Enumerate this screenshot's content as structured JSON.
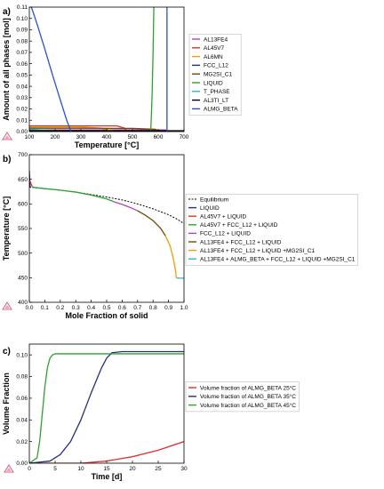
{
  "chart_data": [
    {
      "type": "line",
      "panel_label": "a)",
      "xlabel": "Temperature [°C]",
      "ylabel": "Amount of all phases [mol]",
      "xlim": [
        100,
        700
      ],
      "ylim": [
        0,
        0.11
      ],
      "xticks": [
        100,
        200,
        300,
        400,
        500,
        600,
        700
      ],
      "yticks": [
        0,
        0.01,
        0.02,
        0.03,
        0.04,
        0.05,
        0.06,
        0.07,
        0.08,
        0.09,
        0.1,
        0.11
      ],
      "ytick_labels": [
        "0.00",
        "0.01",
        "0.02",
        "0.03",
        "0.04",
        "0.05",
        "0.06",
        "0.07",
        "0.08",
        "0.09",
        "0.10",
        "0.11"
      ],
      "grid": false,
      "legend_position": "right",
      "series": [
        {
          "name": "AL13FE4",
          "color": "#b040c0",
          "x": [
            100,
            200,
            300,
            400,
            500,
            560,
            600,
            630,
            640
          ],
          "y": [
            0.0015,
            0.0015,
            0.0015,
            0.0015,
            0.0015,
            0.0015,
            0.0015,
            0.0015,
            0
          ]
        },
        {
          "name": "AL45V7",
          "color": "#e03030",
          "x": [
            100,
            300,
            440,
            470,
            480
          ],
          "y": [
            0.005,
            0.005,
            0.005,
            0.003,
            0
          ]
        },
        {
          "name": "AL6MN",
          "color": "#f0a000",
          "x": [
            100,
            200,
            300,
            380,
            420,
            440
          ],
          "y": [
            0.004,
            0.0042,
            0.0041,
            0.003,
            0.001,
            0
          ]
        },
        {
          "name": "FCC_L12",
          "color": "#203080",
          "x": [
            100,
            620,
            634,
            636
          ],
          "y": [
            0.0005,
            0.0005,
            0.0005,
            0
          ]
        },
        {
          "name": "MG2SI_C1",
          "color": "#6b4a10",
          "x": [
            100,
            300,
            500,
            590,
            600
          ],
          "y": [
            0.003,
            0.003,
            0.0028,
            0.002,
            0
          ]
        },
        {
          "name": "LIQUID",
          "color": "#30a030",
          "x": [
            571,
            576,
            580,
            583
          ],
          "y": [
            0,
            0.03,
            0.07,
            0.11
          ]
        },
        {
          "name": "T_PHASE",
          "color": "#30b0d0",
          "x": [
            100,
            150,
            200,
            230
          ],
          "y": [
            0.002,
            0.0015,
            0.0008,
            0
          ]
        },
        {
          "name": "AL3TI_LT",
          "color": "#000000",
          "x": [
            100,
            300,
            500,
            620,
            660,
            700
          ],
          "y": [
            0.0008,
            0.0008,
            0.0008,
            0.0008,
            0.0008,
            0.0008
          ]
        },
        {
          "name": "ALMG_BETA",
          "color": "#2a50d8",
          "x": [
            108,
            130,
            160,
            190,
            220,
            245,
            262
          ],
          "y": [
            0.11,
            0.095,
            0.073,
            0.05,
            0.028,
            0.01,
            0
          ]
        },
        {
          "name": "",
          "color": "#2a50d8",
          "x": [
            634,
            634
          ],
          "y": [
            0,
            0.11
          ]
        }
      ]
    },
    {
      "type": "line",
      "panel_label": "b)",
      "xlabel": "Mole Fraction of solid",
      "ylabel": "Temperature [°C]",
      "xlim": [
        0,
        1.0
      ],
      "ylim": [
        400,
        700
      ],
      "xticks": [
        0,
        0.1,
        0.2,
        0.3,
        0.4,
        0.5,
        0.6,
        0.7,
        0.8,
        0.9,
        1.0
      ],
      "xtick_labels": [
        "0.0",
        "0.1",
        "0.2",
        "0.3",
        "0.4",
        "0.5",
        "0.6",
        "0.7",
        "0.8",
        "0.9",
        "1.0"
      ],
      "yticks": [
        400,
        450,
        500,
        550,
        600,
        650,
        700
      ],
      "grid": false,
      "legend_position": "right",
      "series": [
        {
          "name": "Equilibrium",
          "color": "#000000",
          "dashed": true,
          "x": [
            0,
            0.1,
            0.2,
            0.3,
            0.4,
            0.5,
            0.6,
            0.7,
            0.8,
            0.9,
            0.95,
            1.0
          ],
          "y": [
            634,
            631,
            628,
            624,
            619,
            614,
            608,
            600,
            590,
            578,
            570,
            560
          ]
        },
        {
          "name": "LIQUID",
          "color": "#203080",
          "x": [
            0,
            0.005
          ],
          "y": [
            668,
            634
          ]
        },
        {
          "name": "AL45V7 + LIQUID",
          "color": "#e03030",
          "x": [
            0.005,
            0.02
          ],
          "y": [
            646,
            634
          ]
        },
        {
          "name": "AL45V7 + FCC_L12 + LIQUID",
          "color": "#30a030",
          "x": [
            0.02,
            0.1,
            0.2,
            0.3,
            0.4,
            0.5,
            0.55
          ],
          "y": [
            634,
            631,
            628,
            624,
            618,
            610,
            604
          ]
        },
        {
          "name": "FCC_L12 + LIQUID",
          "color": "#b040c0",
          "x": [
            0.55,
            0.6,
            0.65,
            0.7
          ],
          "y": [
            604,
            599,
            593,
            586
          ]
        },
        {
          "name": "AL13FE4 + FCC_L12 + LIQUID",
          "color": "#6b4a10",
          "x": [
            0.7,
            0.75,
            0.8,
            0.85,
            0.88
          ],
          "y": [
            586,
            577,
            566,
            550,
            535
          ]
        },
        {
          "name": "AL13FE4 + FCC_L12 + LIQUID +MG2SI_C1",
          "color": "#f0a000",
          "x": [
            0.88,
            0.91,
            0.93,
            0.945,
            0.95
          ],
          "y": [
            535,
            515,
            490,
            465,
            450
          ]
        },
        {
          "name": "AL13FE4 + ALMG_BETA + FCC_L12 + LIQUID +MG2SI_C1",
          "color": "#30b0d0",
          "x": [
            0.95,
            0.97,
            1.0
          ],
          "y": [
            450,
            449,
            449
          ]
        }
      ]
    },
    {
      "type": "line",
      "panel_label": "c)",
      "xlabel": "Time [d]",
      "ylabel": "Volume Fraction",
      "xlim": [
        0,
        30
      ],
      "ylim": [
        0,
        0.11
      ],
      "xticks": [
        0,
        5,
        10,
        15,
        20,
        25,
        30
      ],
      "yticks": [
        0,
        0.02,
        0.04,
        0.06,
        0.08,
        0.1
      ],
      "ytick_labels": [
        "0.00",
        "0.02",
        "0.04",
        "0.06",
        "0.08",
        "0.10"
      ],
      "grid": false,
      "legend_position": "right",
      "series": [
        {
          "name": "Volume fraction of ALMG_BETA 25°C",
          "color": "#e03030",
          "x": [
            0,
            10,
            15,
            20,
            25,
            30
          ],
          "y": [
            0,
            0,
            0.002,
            0.006,
            0.012,
            0.02
          ]
        },
        {
          "name": "Volume fraction of ALMG_BETA 35°C",
          "color": "#203080",
          "x": [
            0,
            4,
            6,
            8,
            10,
            12,
            14,
            15,
            16,
            18,
            30
          ],
          "y": [
            0,
            0.002,
            0.008,
            0.02,
            0.04,
            0.065,
            0.088,
            0.097,
            0.102,
            0.103,
            0.103
          ]
        },
        {
          "name": "Volume fraction of ALMG_BETA 45°C",
          "color": "#30a030",
          "x": [
            0,
            1.5,
            2,
            2.5,
            3,
            3.5,
            4,
            4.5,
            5,
            30
          ],
          "y": [
            0,
            0.005,
            0.02,
            0.045,
            0.07,
            0.088,
            0.097,
            0.1,
            0.101,
            0.101
          ]
        }
      ]
    }
  ]
}
